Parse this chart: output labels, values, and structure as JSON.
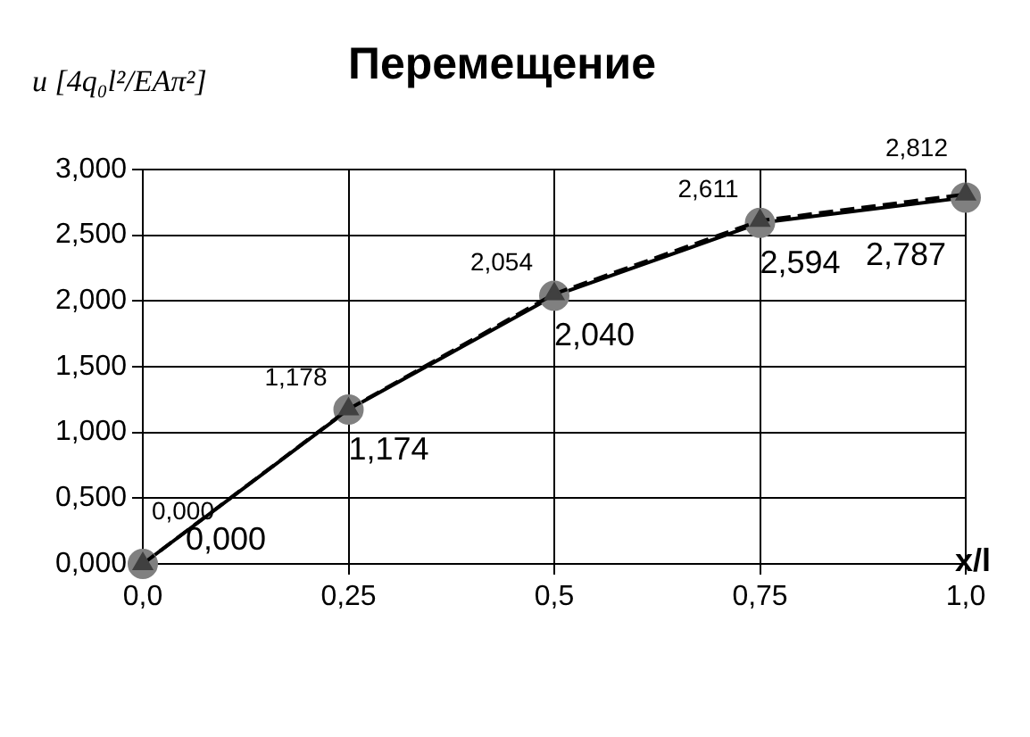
{
  "chart_data": {
    "type": "line",
    "title": "Перемещение",
    "ylabel": "u [4q₀l²/EAπ²]",
    "xlabel": "x/l",
    "x": [
      0,
      0.25,
      0.5,
      0.75,
      1
    ],
    "series": [
      {
        "color": "#808080",
        "marker": "circle",
        "line_style": "solid",
        "values": [
          0,
          1.174,
          2.04,
          2.594,
          2.787
        ],
        "value_labels": [
          "0,000",
          "1,174",
          "2,040",
          "2,594",
          "2,787"
        ]
      },
      {
        "color": "#404040",
        "marker": "triangle",
        "line_style": "dashed",
        "values": [
          0,
          1.178,
          2.054,
          2.611,
          2.812
        ],
        "value_labels": [
          "0,000",
          "1,178",
          "2,054",
          "2,611",
          "2,812"
        ]
      }
    ],
    "xlim": [
      0,
      1
    ],
    "xticks": [
      {
        "value": 0,
        "label": "0,0"
      },
      {
        "value": 0.25,
        "label": "0,25"
      },
      {
        "value": 0.5,
        "label": "0,5"
      },
      {
        "value": 0.75,
        "label": "0,75"
      },
      {
        "value": 1,
        "label": "1,0"
      }
    ],
    "ylim": [
      0,
      3
    ],
    "yticks": [
      {
        "value": 0,
        "label": "0,000"
      },
      {
        "value": 0.5,
        "label": "0,500"
      },
      {
        "value": 1,
        "label": "1,000"
      },
      {
        "value": 1.5,
        "label": "1,500"
      },
      {
        "value": 2,
        "label": "2,000"
      },
      {
        "value": 2.5,
        "label": "2,500"
      },
      {
        "value": 3,
        "label": "3,000"
      }
    ],
    "grid": true,
    "legend": false
  }
}
